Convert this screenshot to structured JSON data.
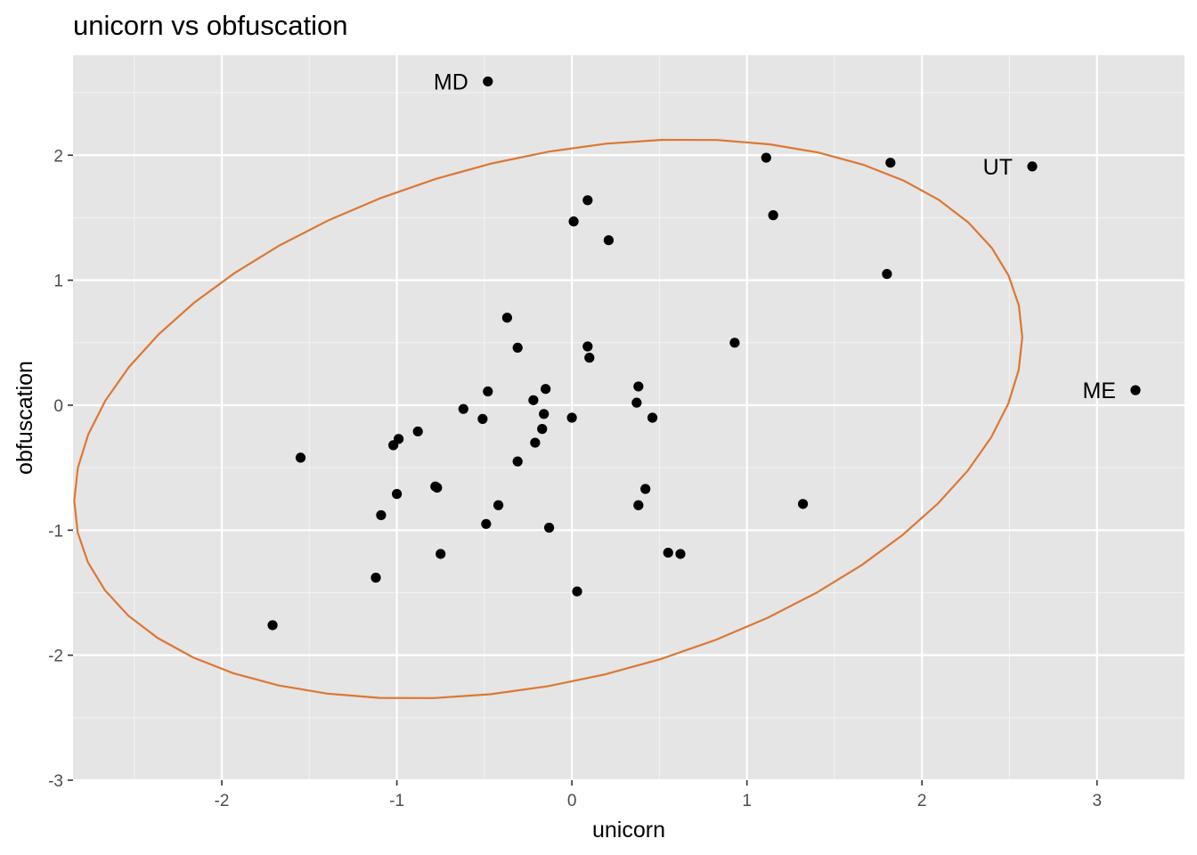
{
  "chart_data": {
    "type": "scatter",
    "title": "unicorn vs obfuscation",
    "xlabel": "unicorn",
    "ylabel": "obfuscation",
    "xlim": [
      -2.85,
      3.5
    ],
    "ylim": [
      -3.0,
      2.8
    ],
    "x_ticks": [
      -2,
      -1,
      0,
      1,
      2,
      3
    ],
    "y_ticks": [
      -3,
      -2,
      -1,
      0,
      1,
      2
    ],
    "x_tick_labels": [
      "-2",
      "-1",
      "0",
      "1",
      "2",
      "3"
    ],
    "y_tick_labels": [
      "-3",
      "-2",
      "-1",
      "0",
      "1",
      "2"
    ],
    "grid": true,
    "background_color": "#e5e5e5",
    "ellipse_color": "#dd7733",
    "point_color": "#000000",
    "points": [
      {
        "x": -0.48,
        "y": 2.59,
        "label": "MD"
      },
      {
        "x": 2.63,
        "y": 1.91,
        "label": "UT"
      },
      {
        "x": 3.22,
        "y": 0.12,
        "label": "ME"
      },
      {
        "x": 1.11,
        "y": 1.98
      },
      {
        "x": 1.82,
        "y": 1.94
      },
      {
        "x": 1.15,
        "y": 1.52
      },
      {
        "x": 0.09,
        "y": 1.64
      },
      {
        "x": 0.01,
        "y": 1.47
      },
      {
        "x": 0.21,
        "y": 1.32
      },
      {
        "x": 1.8,
        "y": 1.05
      },
      {
        "x": -0.37,
        "y": 0.7
      },
      {
        "x": -0.31,
        "y": 0.46
      },
      {
        "x": 0.09,
        "y": 0.47
      },
      {
        "x": 0.1,
        "y": 0.38
      },
      {
        "x": 0.93,
        "y": 0.5
      },
      {
        "x": -0.48,
        "y": 0.11
      },
      {
        "x": -0.15,
        "y": 0.13
      },
      {
        "x": 0.38,
        "y": 0.15
      },
      {
        "x": -0.22,
        "y": 0.04
      },
      {
        "x": 0.37,
        "y": 0.02
      },
      {
        "x": -0.62,
        "y": -0.03
      },
      {
        "x": -0.51,
        "y": -0.11
      },
      {
        "x": -0.16,
        "y": -0.07
      },
      {
        "x": 0.0,
        "y": -0.1
      },
      {
        "x": 0.46,
        "y": -0.1
      },
      {
        "x": -0.88,
        "y": -0.21
      },
      {
        "x": -0.17,
        "y": -0.19
      },
      {
        "x": -0.99,
        "y": -0.27
      },
      {
        "x": -1.02,
        "y": -0.32
      },
      {
        "x": -0.21,
        "y": -0.3
      },
      {
        "x": -1.55,
        "y": -0.42
      },
      {
        "x": -0.31,
        "y": -0.45
      },
      {
        "x": -0.78,
        "y": -0.65
      },
      {
        "x": -0.77,
        "y": -0.66
      },
      {
        "x": -1.0,
        "y": -0.71
      },
      {
        "x": 0.42,
        "y": -0.67
      },
      {
        "x": -0.42,
        "y": -0.8
      },
      {
        "x": 0.38,
        "y": -0.8
      },
      {
        "x": 1.32,
        "y": -0.79
      },
      {
        "x": -1.09,
        "y": -0.88
      },
      {
        "x": -0.49,
        "y": -0.95
      },
      {
        "x": -0.13,
        "y": -0.98
      },
      {
        "x": -0.75,
        "y": -1.19
      },
      {
        "x": 0.55,
        "y": -1.18
      },
      {
        "x": 0.62,
        "y": -1.19
      },
      {
        "x": -1.12,
        "y": -1.38
      },
      {
        "x": 0.03,
        "y": -1.49
      },
      {
        "x": -1.71,
        "y": -1.76
      }
    ],
    "ellipse": {
      "center": [
        -0.135,
        -0.11
      ],
      "semi_axes": [
        2.88,
        2.01
      ],
      "angle_deg": 28.4
    }
  }
}
